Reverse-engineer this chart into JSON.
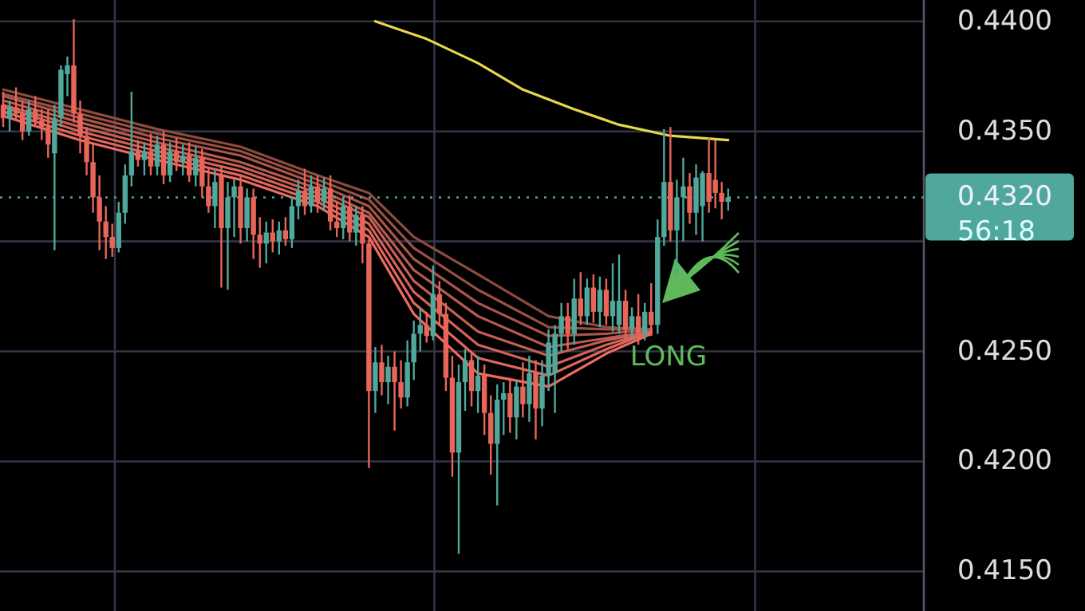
{
  "chart_data": {
    "type": "candlestick",
    "categories": [
      null,
      null,
      null,
      null,
      null,
      null,
      null,
      null,
      null,
      null,
      null,
      null,
      null,
      null,
      null,
      null,
      null,
      null,
      null,
      null,
      null,
      null,
      null,
      null,
      null,
      null,
      null,
      null,
      null,
      null,
      null,
      null,
      null,
      null,
      null,
      null,
      null,
      null,
      null,
      null,
      null,
      null,
      null,
      null,
      null,
      null,
      null,
      null,
      null,
      null,
      null,
      null,
      null,
      null,
      null,
      null,
      null,
      null,
      null,
      null,
      null,
      null,
      null,
      null,
      null,
      null,
      null,
      null,
      null,
      null,
      null,
      null,
      null,
      null,
      null,
      null,
      null,
      null,
      null,
      null,
      null,
      null,
      null,
      null,
      null,
      null,
      null,
      null,
      null,
      null,
      null,
      null,
      null,
      null,
      null,
      null,
      null,
      null,
      null,
      null,
      null,
      null,
      null,
      null,
      null,
      null,
      null,
      null,
      null,
      null,
      null,
      null,
      null,
      null,
      null,
      null,
      null,
      null,
      null,
      null,
      null,
      null,
      null,
      null,
      null,
      null,
      null,
      null,
      null,
      null,
      null,
      null,
      null,
      null,
      null,
      null,
      null,
      null,
      null,
      null,
      null,
      null,
      null,
      null
    ],
    "ohlc": [
      [
        0.4362,
        0.4368,
        0.4352,
        0.4356
      ],
      [
        0.4356,
        0.4364,
        0.435,
        0.4361
      ],
      [
        0.4361,
        0.437,
        0.4355,
        0.4358
      ],
      [
        0.4358,
        0.4364,
        0.4346,
        0.435
      ],
      [
        0.435,
        0.4364,
        0.4348,
        0.436
      ],
      [
        0.436,
        0.4366,
        0.4352,
        0.4355
      ],
      [
        0.4355,
        0.436,
        0.4346,
        0.4352
      ],
      [
        0.4352,
        0.436,
        0.4338,
        0.4344
      ],
      [
        0.434,
        0.4362,
        0.4296,
        0.4356
      ],
      [
        0.4356,
        0.438,
        0.4352,
        0.4378
      ],
      [
        0.4376,
        0.4384,
        0.4366,
        0.438
      ],
      [
        0.438,
        0.4401,
        0.4354,
        0.4358
      ],
      [
        0.4358,
        0.4364,
        0.434,
        0.4348
      ],
      [
        0.4348,
        0.4352,
        0.433,
        0.4336
      ],
      [
        0.4336,
        0.4345,
        0.4313,
        0.432
      ],
      [
        0.432,
        0.433,
        0.4296,
        0.4309
      ],
      [
        0.4309,
        0.4316,
        0.4292,
        0.4302
      ],
      [
        0.4302,
        0.4308,
        0.4293,
        0.4297
      ],
      [
        0.4297,
        0.4318,
        0.4295,
        0.4313
      ],
      [
        0.4313,
        0.4335,
        0.4308,
        0.433
      ],
      [
        0.433,
        0.4368,
        0.4325,
        0.4341
      ],
      [
        0.4341,
        0.4346,
        0.4334,
        0.4337
      ],
      [
        0.4337,
        0.4345,
        0.433,
        0.4341
      ],
      [
        0.4341,
        0.4349,
        0.433,
        0.4334
      ],
      [
        0.4334,
        0.4348,
        0.433,
        0.4344
      ],
      [
        0.4344,
        0.435,
        0.4326,
        0.433
      ],
      [
        0.433,
        0.4345,
        0.4327,
        0.4341
      ],
      [
        0.4341,
        0.4347,
        0.4332,
        0.4336
      ],
      [
        0.4336,
        0.4344,
        0.433,
        0.4339
      ],
      [
        0.4339,
        0.4345,
        0.4327,
        0.433
      ],
      [
        0.433,
        0.4343,
        0.4325,
        0.4338
      ],
      [
        0.4338,
        0.4342,
        0.432,
        0.4325
      ],
      [
        0.4325,
        0.4333,
        0.4313,
        0.4316
      ],
      [
        0.4316,
        0.4333,
        0.4306,
        0.4327
      ],
      [
        0.433,
        0.4334,
        0.4279,
        0.4306
      ],
      [
        0.4306,
        0.4327,
        0.4278,
        0.432
      ],
      [
        0.432,
        0.4328,
        0.4302,
        0.4325
      ],
      [
        0.4325,
        0.433,
        0.4299,
        0.4306
      ],
      [
        0.4306,
        0.4324,
        0.43,
        0.432
      ],
      [
        0.432,
        0.4324,
        0.4292,
        0.4303
      ],
      [
        0.4303,
        0.4311,
        0.4288,
        0.4299
      ],
      [
        0.4299,
        0.4309,
        0.429,
        0.4304
      ],
      [
        0.4304,
        0.431,
        0.4295,
        0.43
      ],
      [
        0.43,
        0.4309,
        0.4294,
        0.4305
      ],
      [
        0.4305,
        0.4311,
        0.4298,
        0.4301
      ],
      [
        0.4301,
        0.432,
        0.4297,
        0.4316
      ],
      [
        0.4316,
        0.4328,
        0.431,
        0.4323
      ],
      [
        0.4323,
        0.4333,
        0.4312,
        0.4316
      ],
      [
        0.4316,
        0.433,
        0.4313,
        0.4325
      ],
      [
        0.4325,
        0.433,
        0.4313,
        0.4318
      ],
      [
        0.4318,
        0.4329,
        0.4314,
        0.4324
      ],
      [
        0.4324,
        0.433,
        0.4305,
        0.4309
      ],
      [
        0.4309,
        0.4318,
        0.4302,
        0.4306
      ],
      [
        0.4306,
        0.432,
        0.4301,
        0.4316
      ],
      [
        0.4316,
        0.4321,
        0.43,
        0.4304
      ],
      [
        0.4304,
        0.4316,
        0.4298,
        0.4312
      ],
      [
        0.4312,
        0.4316,
        0.429,
        0.4299
      ],
      [
        0.4299,
        0.4301,
        0.4197,
        0.4232
      ],
      [
        0.4232,
        0.4252,
        0.4222,
        0.4245
      ],
      [
        0.4245,
        0.4253,
        0.423,
        0.4236
      ],
      [
        0.4236,
        0.4248,
        0.4226,
        0.4243
      ],
      [
        0.4243,
        0.425,
        0.4214,
        0.4236
      ],
      [
        0.4236,
        0.4246,
        0.4224,
        0.4229
      ],
      [
        0.4229,
        0.4255,
        0.4225,
        0.4245
      ],
      [
        0.4245,
        0.4264,
        0.4237,
        0.4258
      ],
      [
        0.4258,
        0.427,
        0.425,
        0.4262
      ],
      [
        0.4262,
        0.4268,
        0.4254,
        0.4257
      ],
      [
        0.4257,
        0.4289,
        0.4255,
        0.4276
      ],
      [
        0.4276,
        0.4282,
        0.4262,
        0.4267
      ],
      [
        0.4267,
        0.4272,
        0.4232,
        0.4238
      ],
      [
        0.4238,
        0.4248,
        0.4193,
        0.4204
      ],
      [
        0.4204,
        0.4244,
        0.4158,
        0.4236
      ],
      [
        0.4236,
        0.4251,
        0.4223,
        0.4246
      ],
      [
        0.4246,
        0.425,
        0.4225,
        0.4232
      ],
      [
        0.4232,
        0.4248,
        0.4222,
        0.4239
      ],
      [
        0.4239,
        0.4244,
        0.4212,
        0.4222
      ],
      [
        0.4222,
        0.423,
        0.4194,
        0.4208
      ],
      [
        0.4208,
        0.4235,
        0.418,
        0.4228
      ],
      [
        0.4228,
        0.4236,
        0.4212,
        0.4231
      ],
      [
        0.4231,
        0.4238,
        0.4213,
        0.422
      ],
      [
        0.422,
        0.4237,
        0.421,
        0.4234
      ],
      [
        0.4234,
        0.4245,
        0.422,
        0.4226
      ],
      [
        0.4226,
        0.4248,
        0.4218,
        0.424
      ],
      [
        0.424,
        0.4246,
        0.421,
        0.4224
      ],
      [
        0.4224,
        0.4246,
        0.4216,
        0.4239
      ],
      [
        0.4239,
        0.426,
        0.4232,
        0.4254
      ],
      [
        0.424,
        0.4262,
        0.4222,
        0.4258
      ],
      [
        0.4258,
        0.4272,
        0.425,
        0.4266
      ],
      [
        0.4266,
        0.4272,
        0.4251,
        0.4258
      ],
      [
        0.4258,
        0.4283,
        0.4253,
        0.4274
      ],
      [
        0.4274,
        0.4286,
        0.4262,
        0.4266
      ],
      [
        0.4266,
        0.4283,
        0.4262,
        0.4279
      ],
      [
        0.4279,
        0.4285,
        0.4263,
        0.4268
      ],
      [
        0.4268,
        0.4284,
        0.4261,
        0.4278
      ],
      [
        0.4278,
        0.4283,
        0.4262,
        0.4266
      ],
      [
        0.4266,
        0.429,
        0.4259,
        0.4273
      ],
      [
        0.4262,
        0.4294,
        0.4258,
        0.4273
      ],
      [
        0.4273,
        0.4278,
        0.4255,
        0.426
      ],
      [
        0.426,
        0.427,
        0.4256,
        0.4266
      ],
      [
        0.4266,
        0.4276,
        0.4253,
        0.4258
      ],
      [
        0.4258,
        0.4272,
        0.4255,
        0.4268
      ],
      [
        0.4268,
        0.4281,
        0.4257,
        0.4262
      ],
      [
        0.4262,
        0.431,
        0.4258,
        0.4302
      ],
      [
        0.4302,
        0.4351,
        0.4298,
        0.4327
      ],
      [
        0.4327,
        0.4352,
        0.43,
        0.4305
      ],
      [
        0.4305,
        0.4328,
        0.4284,
        0.432
      ],
      [
        0.432,
        0.4338,
        0.43,
        0.4325
      ],
      [
        0.4325,
        0.4331,
        0.4308,
        0.4313
      ],
      [
        0.4313,
        0.4335,
        0.4303,
        0.4329
      ],
      [
        0.4316,
        0.4332,
        0.43,
        0.4331
      ],
      [
        0.4331,
        0.4347,
        0.4313,
        0.4318
      ],
      [
        0.4328,
        0.4346,
        0.4315,
        0.4322
      ],
      [
        0.4322,
        0.4327,
        0.431,
        0.4318
      ],
      [
        0.4318,
        0.4324,
        0.4314,
        0.432
      ],
      null,
      null,
      null,
      null,
      null,
      null,
      null,
      null,
      null,
      null,
      null,
      null,
      null,
      null,
      null,
      null,
      null,
      null,
      null,
      null,
      null,
      null,
      null,
      null,
      null,
      null,
      null,
      null,
      null,
      null
    ],
    "colors": [
      "#e8655a",
      "#4fa89b",
      "#e8655a",
      "#e8655a",
      "#4fa89b",
      "#e8655a",
      "#e8655a",
      "#e8655a",
      "#4fa89b",
      "#4fa89b",
      "#4fa89b",
      "#e8655a",
      "#e8655a",
      "#e8655a",
      "#e8655a",
      "#e8655a",
      "#e8655a",
      "#e8655a",
      "#4fa89b",
      "#4fa89b",
      "#4fa89b",
      "#e8655a",
      "#4fa89b",
      "#e8655a",
      "#4fa89b",
      "#e8655a",
      "#4fa89b",
      "#e8655a",
      "#4fa89b",
      "#e8655a",
      "#4fa89b",
      "#e8655a",
      "#e8655a",
      "#4fa89b",
      "#e8655a",
      "#4fa89b",
      "#4fa89b",
      "#e8655a",
      "#4fa89b",
      "#e8655a",
      "#e8655a",
      "#4fa89b",
      "#e8655a",
      "#4fa89b",
      "#e8655a",
      "#4fa89b",
      "#4fa89b",
      "#e8655a",
      "#4fa89b",
      "#e8655a",
      "#4fa89b",
      "#e8655a",
      "#e8655a",
      "#4fa89b",
      "#e8655a",
      "#4fa89b",
      "#e8655a",
      "#e8655a",
      "#4fa89b",
      "#e8655a",
      "#4fa89b",
      "#e8655a",
      "#e8655a",
      "#4fa89b",
      "#4fa89b",
      "#4fa89b",
      "#e8655a",
      "#4fa89b",
      "#e8655a",
      "#e8655a",
      "#e8655a",
      "#4fa89b",
      "#4fa89b",
      "#e8655a",
      "#4fa89b",
      "#e8655a",
      "#e8655a",
      "#4fa89b",
      "#4fa89b",
      "#e8655a",
      "#4fa89b",
      "#e8655a",
      "#4fa89b",
      "#e8655a",
      "#4fa89b",
      "#4fa89b",
      "#4fa89b",
      "#4fa89b",
      "#e8655a",
      "#4fa89b",
      "#e8655a",
      "#4fa89b",
      "#e8655a",
      "#4fa89b",
      "#e8655a",
      "#4fa89b",
      "#4fa89b",
      "#e8655a",
      "#4fa89b",
      "#e8655a",
      "#4fa89b",
      "#e8655a",
      "#4fa89b",
      "#4fa89b",
      "#e8655a",
      "#4fa89b",
      "#4fa89b",
      "#e8655a",
      "#4fa89b",
      "#4fa89b",
      "#e8655a",
      "#e8655a",
      "#e8655a",
      "#4fa89b",
      null,
      null,
      null,
      null,
      null,
      null,
      null,
      null,
      null,
      null,
      null,
      null,
      null,
      null,
      null,
      null,
      null,
      null,
      null,
      null,
      null,
      null,
      null,
      null,
      null,
      null,
      null,
      null,
      null,
      null
    ],
    "series": [
      {
        "type": "line",
        "color": "#8d4b3f",
        "values": [
          0.4369,
          null,
          null,
          null,
          null,
          null,
          null,
          null,
          null,
          null,
          null,
          null,
          0.436,
          null,
          null,
          null,
          null,
          null,
          null,
          null,
          null,
          null,
          null,
          null,
          0.4351,
          null,
          null,
          null,
          null,
          null,
          null,
          null,
          null,
          null,
          null,
          null,
          null,
          0.4343,
          null,
          null,
          null,
          null,
          null,
          null,
          null,
          null,
          null,
          null,
          null,
          0.433,
          null,
          null,
          null,
          null,
          null,
          null,
          null,
          0.4322,
          null,
          null,
          null,
          null,
          null,
          null,
          0.4302,
          null,
          null,
          null,
          null,
          null,
          null,
          null,
          null,
          null,
          0.4285,
          null,
          null,
          null,
          null,
          null,
          null,
          null,
          null,
          null,
          null,
          0.4266,
          null,
          null,
          null,
          null,
          null,
          null,
          null,
          null,
          0.4261,
          null,
          null,
          null,
          null,
          null,
          null,
          0.426,
          null,
          null,
          null,
          null,
          null,
          null,
          null,
          null,
          null,
          null,
          null,
          null,
          null,
          null,
          null,
          null,
          null,
          null,
          null,
          null,
          null,
          null,
          null,
          null,
          null,
          null,
          null,
          null,
          null,
          null,
          null,
          null,
          null,
          null,
          null,
          null,
          null,
          null,
          null,
          null,
          null,
          null
        ]
      },
      {
        "type": "line",
        "color": "#9b5044",
        "values": [
          0.4367,
          null,
          null,
          null,
          null,
          null,
          null,
          null,
          null,
          null,
          null,
          null,
          0.4358,
          null,
          null,
          null,
          null,
          null,
          null,
          null,
          null,
          null,
          null,
          null,
          0.4349,
          null,
          null,
          null,
          null,
          null,
          null,
          null,
          null,
          null,
          null,
          null,
          null,
          0.4341,
          null,
          null,
          null,
          null,
          null,
          null,
          null,
          null,
          null,
          null,
          null,
          0.4328,
          null,
          null,
          null,
          null,
          null,
          null,
          null,
          0.4319,
          null,
          null,
          null,
          null,
          null,
          null,
          0.4297,
          null,
          null,
          null,
          null,
          null,
          null,
          null,
          null,
          null,
          0.4278,
          null,
          null,
          null,
          null,
          null,
          null,
          null,
          null,
          null,
          null,
          0.4261,
          null,
          null,
          null,
          null,
          null,
          null,
          null,
          null,
          0.426,
          null,
          null,
          null,
          null,
          null,
          null,
          0.426,
          null,
          null,
          null,
          null,
          null,
          null,
          null,
          null,
          null,
          null,
          null,
          null,
          null,
          null,
          null,
          null,
          null,
          null,
          null,
          null,
          null,
          null,
          null,
          null,
          null,
          null,
          null,
          null,
          null,
          null,
          null,
          null,
          null,
          null,
          null,
          null,
          null,
          null,
          null,
          null,
          null,
          null
        ]
      },
      {
        "type": "line",
        "color": "#a9554a",
        "values": [
          0.4366,
          null,
          null,
          null,
          null,
          null,
          null,
          null,
          null,
          null,
          null,
          null,
          0.4356,
          null,
          null,
          null,
          null,
          null,
          null,
          null,
          null,
          null,
          null,
          null,
          0.4347,
          null,
          null,
          null,
          null,
          null,
          null,
          null,
          null,
          null,
          null,
          null,
          null,
          0.4339,
          null,
          null,
          null,
          null,
          null,
          null,
          null,
          null,
          null,
          null,
          null,
          0.4326,
          null,
          null,
          null,
          null,
          null,
          null,
          null,
          0.4316,
          null,
          null,
          null,
          null,
          null,
          null,
          0.4292,
          null,
          null,
          null,
          null,
          null,
          null,
          null,
          null,
          null,
          0.4272,
          null,
          null,
          null,
          null,
          null,
          null,
          null,
          null,
          null,
          null,
          0.4257,
          null,
          null,
          null,
          null,
          null,
          null,
          null,
          null,
          0.4258,
          null,
          null,
          null,
          null,
          null,
          null,
          0.426,
          null,
          null,
          null,
          null,
          null,
          null,
          null,
          null,
          null,
          null,
          null,
          null,
          null,
          null,
          null,
          null,
          null,
          null,
          null,
          null,
          null,
          null,
          null,
          null,
          null,
          null,
          null,
          null,
          null,
          null,
          null,
          null,
          null,
          null,
          null,
          null,
          null,
          null,
          null,
          null,
          null,
          null
        ]
      },
      {
        "type": "line",
        "color": "#b75a4f",
        "values": [
          0.4364,
          null,
          null,
          null,
          null,
          null,
          null,
          null,
          null,
          null,
          null,
          null,
          0.4354,
          null,
          null,
          null,
          null,
          null,
          null,
          null,
          null,
          null,
          null,
          null,
          0.4345,
          null,
          null,
          null,
          null,
          null,
          null,
          null,
          null,
          null,
          null,
          null,
          null,
          0.4336,
          null,
          null,
          null,
          null,
          null,
          null,
          null,
          null,
          null,
          null,
          null,
          0.4324,
          null,
          null,
          null,
          null,
          null,
          null,
          null,
          0.4313,
          null,
          null,
          null,
          null,
          null,
          null,
          0.4287,
          null,
          null,
          null,
          null,
          null,
          null,
          null,
          null,
          null,
          0.4266,
          null,
          null,
          null,
          null,
          null,
          null,
          null,
          null,
          null,
          null,
          0.4252,
          null,
          null,
          null,
          null,
          null,
          null,
          null,
          null,
          0.4256,
          null,
          null,
          null,
          null,
          null,
          null,
          0.4259,
          null,
          null,
          null,
          null,
          null,
          null,
          null,
          null,
          null,
          null,
          null,
          null,
          null,
          null,
          null,
          null,
          null,
          null,
          null,
          null,
          null,
          null,
          null,
          null,
          null,
          null,
          null,
          null,
          null,
          null,
          null,
          null,
          null,
          null,
          null,
          null,
          null,
          null,
          null,
          null,
          null,
          null
        ]
      },
      {
        "type": "line",
        "color": "#c55f54",
        "values": [
          0.4362,
          null,
          null,
          null,
          null,
          null,
          null,
          null,
          null,
          null,
          null,
          null,
          0.4352,
          null,
          null,
          null,
          null,
          null,
          null,
          null,
          null,
          null,
          null,
          null,
          0.4343,
          null,
          null,
          null,
          null,
          null,
          null,
          null,
          null,
          null,
          null,
          null,
          null,
          0.4334,
          null,
          null,
          null,
          null,
          null,
          null,
          null,
          null,
          null,
          null,
          null,
          0.4322,
          null,
          null,
          null,
          null,
          null,
          null,
          null,
          0.4311,
          null,
          null,
          null,
          null,
          null,
          null,
          0.4282,
          null,
          null,
          null,
          null,
          null,
          null,
          null,
          null,
          null,
          0.4259,
          null,
          null,
          null,
          null,
          null,
          null,
          null,
          null,
          null,
          null,
          0.4248,
          null,
          null,
          null,
          null,
          null,
          null,
          null,
          null,
          0.4255,
          null,
          null,
          null,
          null,
          null,
          null,
          0.4259,
          null,
          null,
          null,
          null,
          null,
          null,
          null,
          null,
          null,
          null,
          null,
          null,
          null,
          null,
          null,
          null,
          null,
          null,
          null,
          null,
          null,
          null,
          null,
          null,
          null,
          null,
          null,
          null,
          null,
          null,
          null,
          null,
          null,
          null,
          null,
          null,
          null,
          null,
          null,
          null,
          null,
          null
        ]
      },
      {
        "type": "line",
        "color": "#d36359",
        "values": [
          0.4361,
          null,
          null,
          null,
          null,
          null,
          null,
          null,
          null,
          null,
          null,
          null,
          0.435,
          null,
          null,
          null,
          null,
          null,
          null,
          null,
          null,
          null,
          null,
          null,
          0.4341,
          null,
          null,
          null,
          null,
          null,
          null,
          null,
          null,
          null,
          null,
          null,
          null,
          0.4332,
          null,
          null,
          null,
          null,
          null,
          null,
          null,
          null,
          null,
          null,
          null,
          0.432,
          null,
          null,
          null,
          null,
          null,
          null,
          null,
          0.4308,
          null,
          null,
          null,
          null,
          null,
          null,
          0.4277,
          null,
          null,
          null,
          null,
          null,
          null,
          null,
          null,
          null,
          0.4253,
          null,
          null,
          null,
          null,
          null,
          null,
          null,
          null,
          null,
          null,
          0.4243,
          null,
          null,
          null,
          null,
          null,
          null,
          null,
          null,
          0.4253,
          null,
          null,
          null,
          null,
          null,
          null,
          0.4259,
          null,
          null,
          null,
          null,
          null,
          null,
          null,
          null,
          null,
          null,
          null,
          null,
          null,
          null,
          null,
          null,
          null,
          null,
          null,
          null,
          null,
          null,
          null,
          null,
          null,
          null,
          null,
          null,
          null,
          null,
          null,
          null,
          null,
          null,
          null,
          null,
          null,
          null,
          null,
          null,
          null,
          null
        ]
      },
      {
        "type": "line",
        "color": "#e1675e",
        "values": [
          0.4359,
          null,
          null,
          null,
          null,
          null,
          null,
          null,
          null,
          null,
          null,
          null,
          0.4348,
          null,
          null,
          null,
          null,
          null,
          null,
          null,
          null,
          null,
          null,
          null,
          0.4339,
          null,
          null,
          null,
          null,
          null,
          null,
          null,
          null,
          null,
          null,
          null,
          null,
          0.433,
          null,
          null,
          null,
          null,
          null,
          null,
          null,
          null,
          null,
          null,
          null,
          0.4318,
          null,
          null,
          null,
          null,
          null,
          null,
          null,
          0.4305,
          null,
          null,
          null,
          null,
          null,
          null,
          0.4272,
          null,
          null,
          null,
          null,
          null,
          null,
          null,
          null,
          null,
          0.4247,
          null,
          null,
          null,
          null,
          null,
          null,
          null,
          null,
          null,
          null,
          0.4239,
          null,
          null,
          null,
          null,
          null,
          null,
          null,
          null,
          0.4251,
          null,
          null,
          null,
          null,
          null,
          null,
          0.4259,
          null,
          null,
          null,
          null,
          null,
          null,
          null,
          null,
          null,
          null,
          null,
          null,
          null,
          null,
          null,
          null,
          null,
          null,
          null,
          null,
          null,
          null,
          null,
          null,
          null,
          null,
          null,
          null,
          null,
          null,
          null,
          null,
          null,
          null,
          null,
          null,
          null,
          null,
          null,
          null,
          null,
          null
        ]
      },
      {
        "type": "line",
        "color": "#ef6b62",
        "values": [
          0.4357,
          null,
          null,
          null,
          null,
          null,
          null,
          null,
          null,
          null,
          null,
          null,
          0.4346,
          null,
          null,
          null,
          null,
          null,
          null,
          null,
          null,
          null,
          null,
          null,
          0.4337,
          null,
          null,
          null,
          null,
          null,
          null,
          null,
          null,
          null,
          null,
          null,
          null,
          0.4328,
          null,
          null,
          null,
          null,
          null,
          null,
          null,
          null,
          null,
          null,
          null,
          0.4316,
          null,
          null,
          null,
          null,
          null,
          null,
          null,
          0.4302,
          null,
          null,
          null,
          null,
          null,
          null,
          0.4267,
          null,
          null,
          null,
          null,
          null,
          null,
          null,
          null,
          null,
          0.424,
          null,
          null,
          null,
          null,
          null,
          null,
          null,
          null,
          null,
          null,
          0.4234,
          null,
          null,
          null,
          null,
          null,
          null,
          null,
          null,
          0.4249,
          null,
          null,
          null,
          null,
          null,
          null,
          0.4258,
          null,
          null,
          null,
          null,
          null,
          null,
          null,
          null,
          null,
          null,
          null,
          null,
          null,
          null,
          null,
          null,
          null,
          null,
          null,
          null,
          null,
          null,
          null,
          null,
          null,
          null,
          null,
          null,
          null,
          null,
          null,
          null,
          null,
          null,
          null,
          null,
          null,
          null,
          null,
          null,
          null,
          null
        ]
      },
      {
        "type": "line",
        "color": "#e6d84a",
        "values": [
          null,
          null,
          null,
          null,
          null,
          null,
          null,
          null,
          null,
          null,
          null,
          null,
          null,
          null,
          null,
          null,
          null,
          null,
          null,
          null,
          null,
          null,
          null,
          null,
          null,
          null,
          null,
          null,
          null,
          null,
          null,
          null,
          null,
          null,
          null,
          null,
          null,
          null,
          null,
          null,
          null,
          null,
          null,
          null,
          null,
          null,
          null,
          null,
          null,
          null,
          null,
          null,
          null,
          null,
          null,
          null,
          null,
          null,
          0.44,
          null,
          null,
          null,
          null,
          null,
          null,
          null,
          0.4392,
          null,
          null,
          null,
          null,
          null,
          null,
          null,
          0.4381,
          null,
          null,
          null,
          null,
          null,
          null,
          0.4369,
          null,
          null,
          null,
          null,
          null,
          null,
          null,
          0.436,
          null,
          null,
          null,
          null,
          null,
          null,
          0.4353,
          null,
          null,
          null,
          null,
          null,
          null,
          null,
          0.4348,
          null,
          null,
          null,
          null,
          null,
          null,
          null,
          null,
          0.4346,
          null,
          null,
          null,
          null,
          null,
          null,
          null,
          null,
          null,
          null,
          null,
          null,
          null,
          null,
          null,
          null,
          null,
          null,
          null,
          null,
          null,
          null,
          null,
          null,
          null,
          null,
          null,
          null,
          null,
          null
        ]
      }
    ],
    "ylim": [
      0.4132,
      0.4401
    ],
    "yticks": [
      {
        "value": 0.415,
        "label": "0.4150"
      },
      {
        "value": 0.42,
        "label": "0.4200"
      },
      {
        "value": 0.425,
        "label": "0.4250"
      },
      {
        "value": 0.43,
        "label": null
      },
      {
        "value": 0.435,
        "label": "0.4350"
      },
      {
        "value": 0.44,
        "label": "0.4400"
      }
    ],
    "tick_labels": "y",
    "grid": true,
    "ref_lines": [
      {
        "axis": "y",
        "value": 0.432,
        "label": "0.4320",
        "color": "#4fa89b",
        "line_style": "dotted"
      }
    ],
    "annotations": [
      "56:18",
      "LONG"
    ]
  }
}
